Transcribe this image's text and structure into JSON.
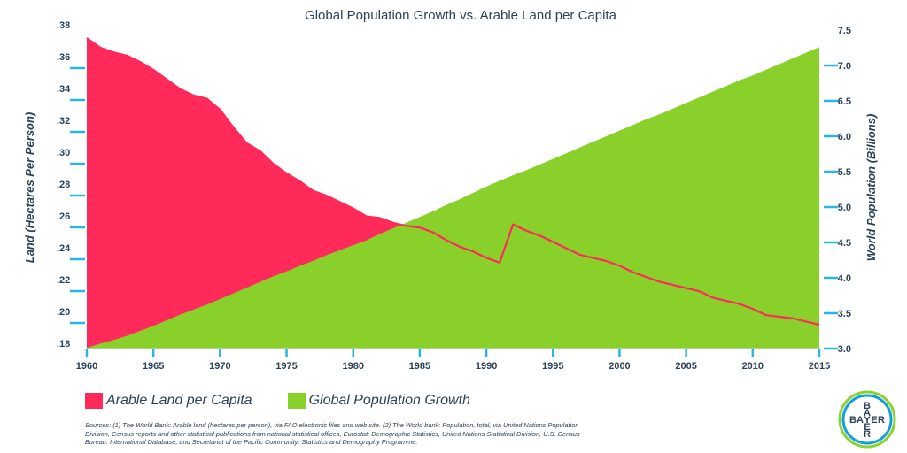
{
  "chart_data": {
    "type": "area",
    "title": "Global Population Growth vs. Arable Land per Capita",
    "x": [
      1960,
      1961,
      1962,
      1963,
      1964,
      1965,
      1966,
      1967,
      1968,
      1969,
      1970,
      1971,
      1972,
      1973,
      1974,
      1975,
      1976,
      1977,
      1978,
      1979,
      1980,
      1981,
      1982,
      1983,
      1984,
      1985,
      1986,
      1987,
      1988,
      1989,
      1990,
      1991,
      1992,
      1993,
      1994,
      1995,
      1996,
      1997,
      1998,
      1999,
      2000,
      2001,
      2002,
      2003,
      2004,
      2005,
      2006,
      2007,
      2008,
      2009,
      2010,
      2011,
      2012,
      2013,
      2014,
      2015
    ],
    "x_ticks": [
      "1960",
      "1965",
      "1970",
      "1975",
      "1980",
      "1985",
      "1990",
      "1995",
      "2000",
      "2005",
      "2010",
      "2015"
    ],
    "xlim": [
      1960,
      2015
    ],
    "left_axis": {
      "label": "Land (Hectares Per Person)",
      "ylim": [
        0.18,
        0.38
      ],
      "ticks": [
        ".18",
        ".20",
        ".22",
        ".24",
        ".26",
        ".28",
        ".30",
        ".32",
        ".34",
        ".36",
        ".38"
      ]
    },
    "right_axis": {
      "label": "World Population (Billions)",
      "ylim": [
        3.0,
        7.5
      ],
      "ticks": [
        "3.0",
        "3.5",
        "4.0",
        "4.5",
        "5.0",
        "5.5",
        "6.0",
        "6.5",
        "7.0",
        "7.5"
      ]
    },
    "series": [
      {
        "name": "Arable Land per Capita",
        "axis": "left",
        "color": "#ff2a5a",
        "values": [
          0.375,
          0.369,
          0.366,
          0.364,
          0.36,
          0.355,
          0.349,
          0.343,
          0.339,
          0.337,
          0.33,
          0.319,
          0.309,
          0.304,
          0.296,
          0.29,
          0.285,
          0.279,
          0.276,
          0.272,
          0.268,
          0.263,
          0.262,
          0.259,
          0.257,
          0.256,
          0.253,
          0.248,
          0.244,
          0.241,
          0.237,
          0.234,
          0.258,
          0.254,
          0.251,
          0.247,
          0.243,
          0.239,
          0.237,
          0.235,
          0.232,
          0.228,
          0.225,
          0.222,
          0.22,
          0.218,
          0.216,
          0.212,
          0.21,
          0.208,
          0.205,
          0.201,
          0.2,
          0.199,
          0.197,
          0.195
        ]
      },
      {
        "name": "Global Population Growth",
        "axis": "right",
        "color": "#8ad02b",
        "values": [
          3.01,
          3.07,
          3.12,
          3.18,
          3.25,
          3.32,
          3.4,
          3.48,
          3.55,
          3.62,
          3.7,
          3.78,
          3.86,
          3.94,
          4.02,
          4.09,
          4.17,
          4.24,
          4.32,
          4.39,
          4.46,
          4.53,
          4.62,
          4.7,
          4.78,
          4.86,
          4.94,
          5.03,
          5.11,
          5.2,
          5.29,
          5.37,
          5.45,
          5.52,
          5.6,
          5.68,
          5.76,
          5.84,
          5.92,
          6.0,
          6.08,
          6.16,
          6.24,
          6.31,
          6.39,
          6.47,
          6.55,
          6.63,
          6.71,
          6.79,
          6.86,
          6.94,
          7.02,
          7.1,
          7.18,
          7.26
        ]
      }
    ]
  },
  "legend": [
    {
      "label": "Arable Land per Capita",
      "color": "#ff2a5a"
    },
    {
      "label": "Global Population Growth",
      "color": "#8ad02b"
    }
  ],
  "sources_text": "Sources: (1) The World Bank: Arable land (hectares per person), via FAO electronic files and web site. (2) The World bank: Population, total, via United Nations Population Division, Census reports and other statistical publications from national statistical offices, Eurostat: Demographic Statistics, United Nations Statistical Division, U.S. Census Bureau: International Database, and Secretariat of the Pacific Community: Statistics and Demography Programme.",
  "logo": {
    "letters_horizontal": [
      "B",
      "A",
      "Y",
      "E",
      "R"
    ],
    "letters_vertical": [
      "B",
      "A",
      "Y",
      "E",
      "R"
    ]
  },
  "colors": {
    "text": "#2b4257",
    "tick_marks": "#29b5e8",
    "logo_outer": "#89d32c",
    "logo_inner": "#10a0dc"
  }
}
